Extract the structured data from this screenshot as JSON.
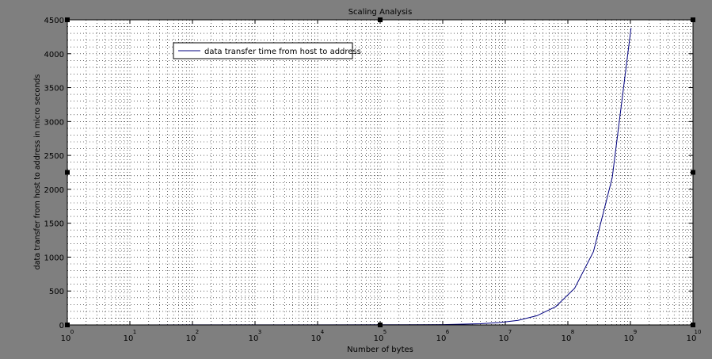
{
  "chart_data": {
    "type": "line",
    "title": "Scaling Analysis",
    "xlabel": "Number of bytes",
    "ylabel": "data transfer from host to address in micro seconds",
    "xscale": "log",
    "x_exponent_range": [
      0,
      10
    ],
    "ylim": [
      0,
      4500
    ],
    "y_ticks": [
      "0",
      "500",
      "1000",
      "1500",
      "2000",
      "2500",
      "3000",
      "3500",
      "4000",
      "4500"
    ],
    "x_tick_base": "10",
    "x_tick_exponents": [
      "0",
      "1",
      "2",
      "3",
      "4",
      "5",
      "6",
      "7",
      "8",
      "9",
      "10"
    ],
    "grid": true,
    "legend_position": "top-left",
    "background_color": "#7f7f7f",
    "plot_background": "#ffffff",
    "series": [
      {
        "name": "data transfer time from host to address",
        "color": "#00007f",
        "x": [
          1,
          10,
          100,
          1000,
          10000,
          100000,
          1000000,
          4000000,
          8000000,
          16000000,
          32000000,
          64000000,
          128000000,
          256000000,
          512000000,
          1024000000
        ],
        "y": [
          0.5,
          0.5,
          0.6,
          0.6,
          0.8,
          2,
          4.5,
          18,
          35,
          68,
          135,
          270,
          540,
          1080,
          2170,
          4380
        ]
      }
    ]
  }
}
